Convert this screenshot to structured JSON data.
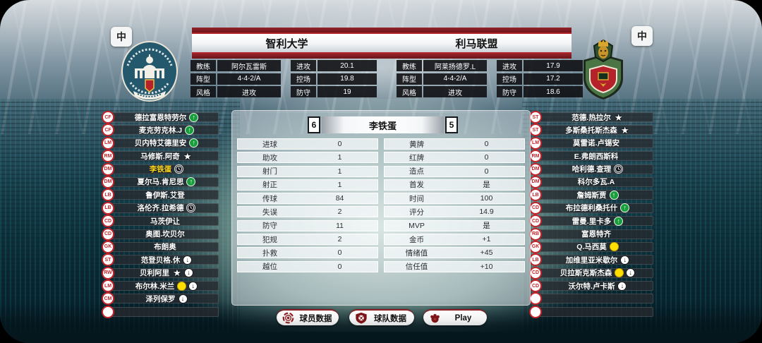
{
  "lang_toggle": {
    "left": "中",
    "right": "中"
  },
  "colors": {
    "accent_red": "#a02228",
    "maroon": "#7c181d",
    "highlight_yellow": "#ffd81f",
    "sub_in_green": "#189e3a",
    "card_yellow": "#ffdf00",
    "badge_red": "#c2242b"
  },
  "header": {
    "home": {
      "name": "智利大学",
      "info": [
        {
          "label": "教练",
          "value": "阿尔瓦雷斯"
        },
        {
          "label": "阵型",
          "value": "4-4-2/A"
        },
        {
          "label": "风格",
          "value": "进攻"
        }
      ],
      "ratings": [
        {
          "label": "进攻",
          "value": "20.1"
        },
        {
          "label": "控场",
          "value": "19.8"
        },
        {
          "label": "防守",
          "value": "19"
        }
      ]
    },
    "away": {
      "name": "利马联盟",
      "info": [
        {
          "label": "教练",
          "value": "阿莱扬德罗.L"
        },
        {
          "label": "阵型",
          "value": "4-4-2/A"
        },
        {
          "label": "风格",
          "value": "进攻"
        }
      ],
      "ratings": [
        {
          "label": "进攻",
          "value": "17.9"
        },
        {
          "label": "控场",
          "value": "17.2"
        },
        {
          "label": "防守",
          "value": "18.6"
        }
      ]
    }
  },
  "player_panel": {
    "home_score": "6",
    "away_score": "5",
    "player_name": "李铁蛋",
    "stats_left": [
      {
        "label": "进球",
        "value": "0"
      },
      {
        "label": "助攻",
        "value": "1"
      },
      {
        "label": "射门",
        "value": "1"
      },
      {
        "label": "射正",
        "value": "1"
      },
      {
        "label": "传球",
        "value": "84"
      },
      {
        "label": "失误",
        "value": "2"
      },
      {
        "label": "防守",
        "value": "11"
      },
      {
        "label": "犯规",
        "value": "2"
      },
      {
        "label": "扑救",
        "value": "0"
      },
      {
        "label": "越位",
        "value": "0"
      }
    ],
    "stats_right": [
      {
        "label": "黄牌",
        "value": "0"
      },
      {
        "label": "红牌",
        "value": "0"
      },
      {
        "label": "造点",
        "value": "0"
      },
      {
        "label": "首发",
        "value": "是"
      },
      {
        "label": "时间",
        "value": "100"
      },
      {
        "label": "评分",
        "value": "14.9"
      },
      {
        "label": "MVP",
        "value": "是"
      },
      {
        "label": "金币",
        "value": "+1"
      },
      {
        "label": "情绪值",
        "value": "+45"
      },
      {
        "label": "信任值",
        "value": "+10"
      }
    ]
  },
  "home_roster": [
    {
      "pos": "CF",
      "name": "德拉富恩特劳尔",
      "icons": [
        "sub-in-icon"
      ]
    },
    {
      "pos": "CF",
      "name": "麦克劳克林.J",
      "icons": [
        "sub-in-icon"
      ]
    },
    {
      "pos": "LM",
      "name": "贝内特艾德里安",
      "icons": [
        "sub-in-icon"
      ]
    },
    {
      "pos": "RM",
      "name": "马修斯.阿奇",
      "icons": [
        "star-icon"
      ]
    },
    {
      "pos": "DM",
      "name": "李铁蛋",
      "icons": [
        "clock-icon"
      ],
      "selected": true
    },
    {
      "pos": "DM",
      "name": "夏尔马.肯尼思",
      "icons": [
        "sub-in-icon"
      ]
    },
    {
      "pos": "LB",
      "name": "鲁伊斯.艾登",
      "icons": []
    },
    {
      "pos": "LB",
      "name": "洛伦齐.拉希德",
      "icons": [
        "clock-icon"
      ]
    },
    {
      "pos": "CD",
      "name": "马茨伊让",
      "icons": []
    },
    {
      "pos": "CD",
      "name": "奥图.坎贝尔",
      "icons": []
    },
    {
      "pos": "GK",
      "name": "布朗奥",
      "icons": []
    },
    {
      "pos": "ST",
      "name": "范登贝格.休",
      "icons": [
        "sub-out-icon"
      ]
    },
    {
      "pos": "RW",
      "name": "贝利阿里",
      "icons": [
        "star-icon",
        "sub-out-icon"
      ]
    },
    {
      "pos": "LM",
      "name": "布尔林.米兰",
      "icons": [
        "yellow-card-icon",
        "sub-out-icon"
      ]
    },
    {
      "pos": "CM",
      "name": "泽列保罗",
      "icons": [
        "sub-out-icon"
      ]
    },
    {
      "pos": "",
      "name": "",
      "icons": []
    }
  ],
  "away_roster": [
    {
      "pos": "ST",
      "name": "范德.热拉尔",
      "icons": [
        "star-icon"
      ]
    },
    {
      "pos": "ST",
      "name": "多斯桑托斯杰森",
      "icons": [
        "star-icon"
      ]
    },
    {
      "pos": "LM",
      "name": "莫雷诺.卢锡安",
      "icons": []
    },
    {
      "pos": "RM",
      "name": "E.弗朗西斯科",
      "icons": []
    },
    {
      "pos": "DM",
      "name": "哈利德.查理",
      "icons": [
        "clock-icon"
      ]
    },
    {
      "pos": "DM",
      "name": "科尔多瓦.A",
      "icons": []
    },
    {
      "pos": "LB",
      "name": "詹姆斯贾",
      "icons": [
        "sub-in-icon"
      ]
    },
    {
      "pos": "CD",
      "name": "布拉德利桑托什",
      "icons": [
        "sub-in-icon"
      ]
    },
    {
      "pos": "CD",
      "name": "雷曼.里卡多",
      "icons": [
        "sub-in-icon"
      ]
    },
    {
      "pos": "RB",
      "name": "富恩特齐",
      "icons": []
    },
    {
      "pos": "GK",
      "name": "Q.马西莫",
      "icons": [
        "yellow-card-icon"
      ]
    },
    {
      "pos": "LB",
      "name": "加维里亚米歇尔",
      "icons": [
        "sub-out-icon"
      ]
    },
    {
      "pos": "CD",
      "name": "贝拉斯克斯杰森",
      "icons": [
        "yellow-card-icon",
        "sub-out-icon"
      ]
    },
    {
      "pos": "CD",
      "name": "沃尔特.卢卡斯",
      "icons": [
        "sub-out-icon"
      ]
    },
    {
      "pos": "",
      "name": "",
      "icons": []
    },
    {
      "pos": "",
      "name": "",
      "icons": []
    }
  ],
  "footer": {
    "buttons": [
      {
        "label": "球员数据",
        "icon": "player-stats-icon"
      },
      {
        "label": "球队数据",
        "icon": "team-stats-icon"
      },
      {
        "label": "Play",
        "icon": "play-icon"
      }
    ]
  }
}
